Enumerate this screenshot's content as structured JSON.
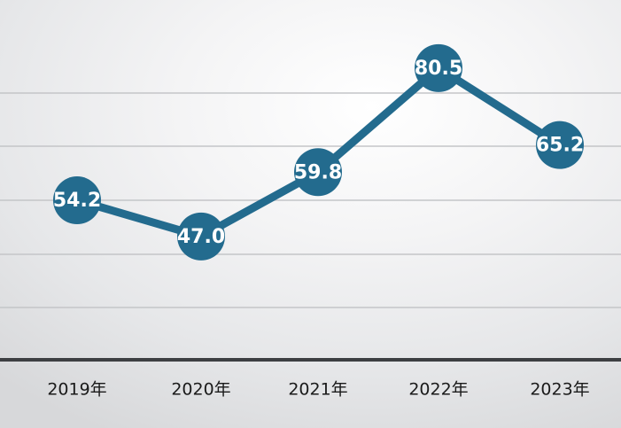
{
  "chart_data": {
    "type": "line",
    "categories": [
      "2019年",
      "2020年",
      "2021年",
      "2022年",
      "2023年"
    ],
    "series": [
      {
        "values": [
          54.2,
          47.0,
          59.8,
          80.5,
          65.2
        ],
        "labels": [
          "54.2",
          "47.0",
          "59.8",
          "80.5",
          "65.2"
        ]
      }
    ],
    "title": "",
    "xlabel": "",
    "ylabel": "",
    "ylim": [
      20,
      90
    ],
    "grid": true,
    "legend": "none",
    "colors": {
      "line": "#236b8e",
      "marker": "#236b8e",
      "label_text": "#ffffff",
      "grid": "#c4c5c8",
      "baseline": "#3d3f42"
    }
  }
}
